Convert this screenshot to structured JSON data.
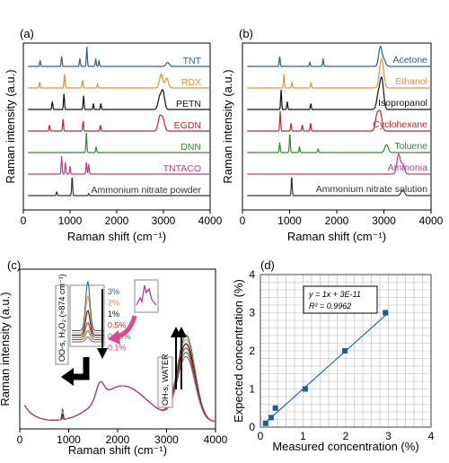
{
  "panel_a": {
    "label": "(a)",
    "xlabel": "Raman shift (cm⁻¹)",
    "ylabel": "Raman intensity (a.u.)",
    "xticks": [
      "0",
      "1000",
      "2000",
      "3000",
      "4000"
    ],
    "series": [
      {
        "name": "TNT",
        "color": "#2e5f8a"
      },
      {
        "name": "RDX",
        "color": "#e8913a"
      },
      {
        "name": "PETN",
        "color": "#111111"
      },
      {
        "name": "EGDN",
        "color": "#c0282d"
      },
      {
        "name": "DNN",
        "color": "#2f8a3a"
      },
      {
        "name": "TNTACO",
        "color": "#c23a8a"
      },
      {
        "name": "Ammonium nitrate powder",
        "color": "#333333"
      }
    ]
  },
  "panel_b": {
    "label": "(b)",
    "xlabel": "Raman shift (cm⁻¹)",
    "ylabel": "Raman intensity (a.u.)",
    "xticks": [
      "0",
      "1000",
      "2000",
      "3000",
      "4000"
    ],
    "series": [
      {
        "name": "Acetone",
        "color": "#2e5f8a"
      },
      {
        "name": "Ethanol",
        "color": "#e8913a"
      },
      {
        "name": "Isopropanol",
        "color": "#111111"
      },
      {
        "name": "Cyclohexane",
        "color": "#c0282d"
      },
      {
        "name": "Toluene",
        "color": "#2f8a3a"
      },
      {
        "name": "Ammonia",
        "color": "#c23a8a"
      },
      {
        "name": "Ammonium nitrate solution",
        "color": "#333333"
      }
    ]
  },
  "panel_c": {
    "label": "(c)",
    "xlabel": "Raman shift (cm⁻¹)",
    "ylabel": "Raman intensity (a.u.)",
    "xticks": [
      "0",
      "1000",
      "2000",
      "3000",
      "4000"
    ],
    "oo_label": "OO-s, H₂O₂ (≈874 cm⁻¹)",
    "oh_label": "OH-s, WATER",
    "concentrations": [
      {
        "name": "3%",
        "color": "#2e5f8a"
      },
      {
        "name": "2%",
        "color": "#e8913a"
      },
      {
        "name": "1%",
        "color": "#111111"
      },
      {
        "name": "0.5%",
        "color": "#c0282d"
      },
      {
        "name": "0.25%",
        "color": "#2f8a3a"
      },
      {
        "name": "0.1%",
        "color": "#c23a8a"
      }
    ]
  },
  "chart_data": [
    {
      "type": "line",
      "panel": "(a)",
      "xlabel": "Raman shift (cm⁻¹)",
      "ylabel": "Raman intensity (a.u.)",
      "xlim": [
        0,
        4000
      ],
      "series": [
        {
          "name": "TNT",
          "peaks": [
            [
              360,
              0.3
            ],
            [
              820,
              0.5
            ],
            [
              1210,
              0.4
            ],
            [
              1360,
              1.0
            ],
            [
              1550,
              0.4
            ],
            [
              1620,
              0.3
            ],
            [
              3090,
              0.2
            ]
          ]
        },
        {
          "name": "RDX",
          "peaks": [
            [
              350,
              0.3
            ],
            [
              880,
              0.7
            ],
            [
              1270,
              0.4
            ],
            [
              1590,
              0.2
            ],
            [
              2950,
              0.7
            ],
            [
              3070,
              0.5
            ]
          ]
        },
        {
          "name": "PETN",
          "peaks": [
            [
              620,
              0.4
            ],
            [
              870,
              0.8
            ],
            [
              1290,
              0.7
            ],
            [
              1500,
              0.3
            ],
            [
              1660,
              0.3
            ],
            [
              2920,
              0.6
            ],
            [
              2990,
              0.9
            ]
          ]
        },
        {
          "name": "EGDN",
          "peaks": [
            [
              560,
              0.3
            ],
            [
              850,
              0.6
            ],
            [
              1280,
              0.5
            ],
            [
              1650,
              0.3
            ],
            [
              2920,
              0.7
            ],
            [
              2990,
              0.6
            ]
          ]
        },
        {
          "name": "DNN",
          "peaks": [
            [
              1350,
              1.0
            ],
            [
              1560,
              0.3
            ]
          ]
        },
        {
          "name": "TNTACO",
          "peaks": [
            [
              820,
              0.9
            ],
            [
              900,
              0.6
            ],
            [
              1000,
              0.4
            ],
            [
              1350,
              0.6
            ],
            [
              1400,
              0.5
            ]
          ]
        },
        {
          "name": "Ammonium nitrate powder",
          "peaks": [
            [
              715,
              0.2
            ],
            [
              1045,
              1.0
            ],
            [
              1400,
              0.1
            ]
          ]
        }
      ]
    },
    {
      "type": "line",
      "panel": "(b)",
      "xlabel": "Raman shift (cm⁻¹)",
      "ylabel": "Raman intensity (a.u.)",
      "xlim": [
        0,
        4000
      ],
      "series": [
        {
          "name": "Acetone",
          "peaks": [
            [
              790,
              0.5
            ],
            [
              1430,
              0.2
            ],
            [
              1710,
              0.4
            ],
            [
              2925,
              1.0
            ],
            [
              3005,
              0.3
            ]
          ]
        },
        {
          "name": "Ethanol",
          "peaks": [
            [
              880,
              0.7
            ],
            [
              1050,
              0.3
            ],
            [
              1455,
              0.3
            ],
            [
              2930,
              1.0
            ],
            [
              2975,
              0.8
            ]
          ]
        },
        {
          "name": "Isopropanol",
          "peaks": [
            [
              820,
              1.0
            ],
            [
              950,
              0.4
            ],
            [
              1450,
              0.3
            ],
            [
              2880,
              0.7
            ],
            [
              2940,
              0.9
            ],
            [
              2970,
              0.8
            ]
          ]
        },
        {
          "name": "Cyclohexane",
          "peaks": [
            [
              800,
              1.0
            ],
            [
              1030,
              0.4
            ],
            [
              1270,
              0.3
            ],
            [
              1445,
              0.4
            ],
            [
              2855,
              0.8
            ],
            [
              2925,
              0.9
            ]
          ]
        },
        {
          "name": "Toluene",
          "peaks": [
            [
              790,
              0.5
            ],
            [
              1005,
              1.0
            ],
            [
              1210,
              0.3
            ],
            [
              1605,
              0.2
            ],
            [
              3055,
              0.4
            ]
          ]
        },
        {
          "name": "Ammonia",
          "peaks": [
            [
              3310,
              1.0
            ],
            [
              3400,
              0.5
            ]
          ]
        },
        {
          "name": "Ammonium nitrate solution",
          "peaks": [
            [
              1045,
              1.0
            ],
            [
              3400,
              0.3
            ]
          ]
        }
      ]
    },
    {
      "type": "line",
      "panel": "(c)",
      "xlabel": "Raman shift (cm⁻¹)",
      "ylabel": "Raman intensity (a.u.)",
      "xlim": [
        0,
        4000
      ],
      "series": [
        {
          "name": "3%",
          "peak_874": 1.0
        },
        {
          "name": "2%",
          "peak_874": 0.75
        },
        {
          "name": "1%",
          "peak_874": 0.5
        },
        {
          "name": "0.5%",
          "peak_874": 0.3
        },
        {
          "name": "0.25%",
          "peak_874": 0.18
        },
        {
          "name": "0.1%",
          "peak_874": 0.1
        }
      ]
    },
    {
      "type": "scatter",
      "panel": "(d)",
      "xlabel": "Measured concentration (%)",
      "ylabel": "Expected concentration (%)",
      "xlim": [
        0,
        4
      ],
      "ylim": [
        0,
        4
      ],
      "xticks": [
        "0",
        "1",
        "2",
        "3",
        "4"
      ],
      "yticks": [
        "0",
        "1",
        "2",
        "3",
        "4"
      ],
      "x": [
        0.12,
        0.25,
        0.35,
        1.05,
        1.98,
        2.93
      ],
      "y": [
        0.1,
        0.25,
        0.5,
        1.0,
        2.0,
        3.0
      ],
      "fit_equation": "y = 1x + 3E-11",
      "r_squared": "R² = 0.9962",
      "grid": true
    }
  ],
  "panel_d": {
    "label": "(d)"
  }
}
